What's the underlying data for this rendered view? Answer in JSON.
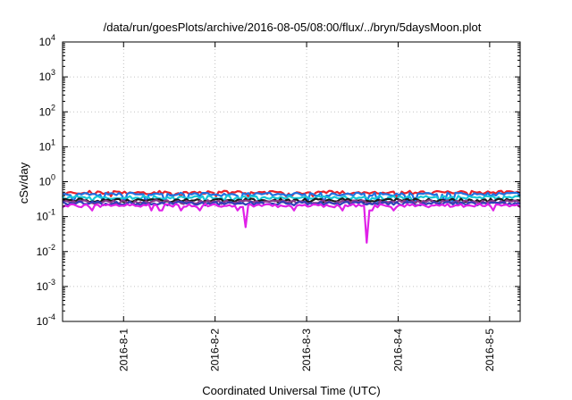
{
  "chart_data": {
    "type": "line",
    "title": "/data/run/goesPlots/archive/2016-08-05/08:00/flux/../bryn/5daysMoon.plot",
    "xlabel": "Coordinated Universal Time (UTC)",
    "ylabel": "cSv/day",
    "y_scale": "log",
    "ylim": [
      0.0001,
      10000
    ],
    "xlim": [
      "2016-07-31T08:00",
      "2016-08-05T08:00"
    ],
    "x_ticks": [
      "2016-8-1",
      "2016-8-2",
      "2016-8-3",
      "2016-8-4",
      "2016-8-5"
    ],
    "y_ticks": [
      {
        "base": "10",
        "exp": "4"
      },
      {
        "base": "10",
        "exp": "3"
      },
      {
        "base": "10",
        "exp": "2"
      },
      {
        "base": "10",
        "exp": "1"
      },
      {
        "base": "10",
        "exp": "0"
      },
      {
        "base": "10",
        "exp": "-1"
      },
      {
        "base": "10",
        "exp": "-2"
      },
      {
        "base": "10",
        "exp": "-3"
      },
      {
        "base": "10",
        "exp": "-4"
      }
    ],
    "grid": true,
    "legend": "none",
    "series": [
      {
        "color": "#e8202a",
        "level": 0.5,
        "dip": 0.38
      },
      {
        "color": "#1f6fe0",
        "level": 0.44,
        "dip": 0.26
      },
      {
        "color": "#18c8d8",
        "level": 0.36,
        "dip": 0.28
      },
      {
        "color": "#1a1a1a",
        "level": 0.3,
        "dip": 0.26
      },
      {
        "color": "#8b3a8b",
        "level": 0.27,
        "dip": 0.23
      },
      {
        "color": "#3040b8",
        "level": 0.245,
        "dip": 0.21
      },
      {
        "color": "#e020e8",
        "level": 0.21,
        "dip": 0.15,
        "spikes": [
          {
            "x": "2016-08-02T08:20",
            "value": 0.05
          },
          {
            "x": "2016-08-03T16:00",
            "value": 0.018
          }
        ]
      }
    ]
  }
}
